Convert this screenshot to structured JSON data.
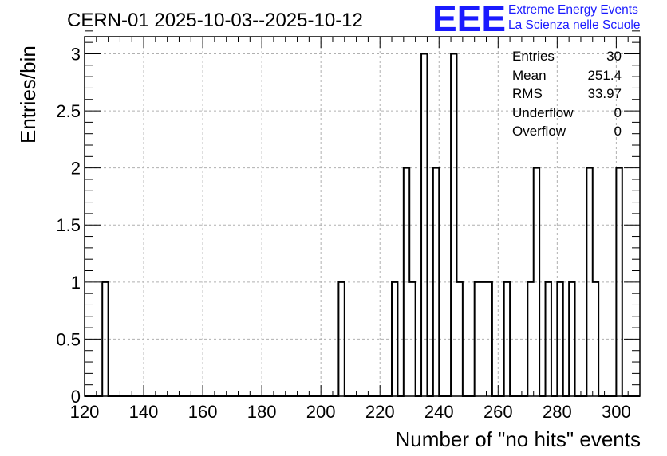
{
  "title": "CERN-01 2025-10-03--2025-10-12",
  "logo": {
    "text": "EEE",
    "color": "#1a1aff"
  },
  "org": {
    "line1": "Extreme Energy Events",
    "line2": "La Scienza nelle Scuole"
  },
  "stats": [
    {
      "label": "Entries",
      "value": "30"
    },
    {
      "label": "Mean",
      "value": "251.4"
    },
    {
      "label": "RMS",
      "value": "33.97"
    },
    {
      "label": "Underflow",
      "value": "0"
    },
    {
      "label": "Overflow",
      "value": "0"
    }
  ],
  "chart_data": {
    "type": "histogram",
    "title": "CERN-01 2025-10-03--2025-10-12",
    "xlabel": "Number of \"no hits\" events",
    "ylabel": "Entries/bin",
    "xlim": [
      120,
      308
    ],
    "ylim": [
      0,
      3.15
    ],
    "bin_width": 2,
    "xticks": [
      120,
      140,
      160,
      180,
      200,
      220,
      240,
      260,
      280,
      300
    ],
    "yticks": [
      0,
      0.5,
      1,
      1.5,
      2,
      2.5,
      3
    ],
    "ytick_labels": [
      "0",
      "0.5",
      "1",
      "1.5",
      "2",
      "2.5",
      "3"
    ],
    "grid": true,
    "line_color": "#000000",
    "bins": [
      {
        "x_low": 126,
        "count": 1
      },
      {
        "x_low": 206,
        "count": 1
      },
      {
        "x_low": 224,
        "count": 1
      },
      {
        "x_low": 228,
        "count": 2
      },
      {
        "x_low": 230,
        "count": 1
      },
      {
        "x_low": 232,
        "count": 0
      },
      {
        "x_low": 234,
        "count": 3
      },
      {
        "x_low": 236,
        "count": 0
      },
      {
        "x_low": 238,
        "count": 2
      },
      {
        "x_low": 244,
        "count": 3
      },
      {
        "x_low": 246,
        "count": 1
      },
      {
        "x_low": 252,
        "count": 1
      },
      {
        "x_low": 254,
        "count": 1
      },
      {
        "x_low": 256,
        "count": 1
      },
      {
        "x_low": 262,
        "count": 1
      },
      {
        "x_low": 270,
        "count": 1
      },
      {
        "x_low": 272,
        "count": 2
      },
      {
        "x_low": 276,
        "count": 1
      },
      {
        "x_low": 280,
        "count": 1
      },
      {
        "x_low": 284,
        "count": 1
      },
      {
        "x_low": 290,
        "count": 2
      },
      {
        "x_low": 292,
        "count": 1
      },
      {
        "x_low": 300,
        "count": 2
      }
    ]
  }
}
